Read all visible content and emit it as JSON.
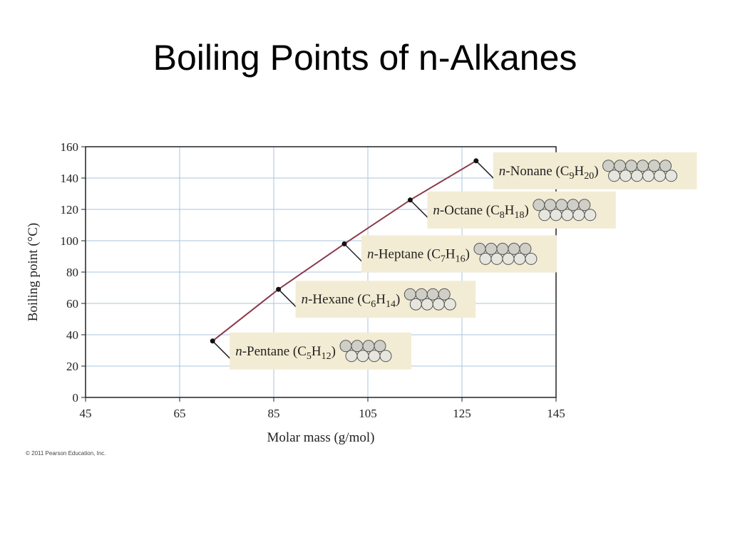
{
  "chart_data": {
    "type": "line",
    "title": "Boiling Points of n-Alkanes",
    "x_label": "Molar mass (g/mol)",
    "y_label": "Boiling point (°C)",
    "footnote": "© 2011 Pearson Education, Inc.",
    "x": [
      72,
      86,
      100,
      114,
      128
    ],
    "series": [
      {
        "name": "Boiling point",
        "color": "#8b3a4a",
        "values": [
          36,
          69,
          98,
          126,
          151
        ]
      }
    ],
    "point_labels": [
      "n-Pentane (C5H12)",
      "n-Hexane (C6H14)",
      "n-Heptane (C7H16)",
      "n-Octane (C8H18)",
      "n-Nonane (C9H20)"
    ],
    "xlim": [
      45,
      145
    ],
    "xticks": [
      45,
      65,
      85,
      105,
      125,
      145
    ],
    "ylim": [
      0,
      160
    ],
    "yticks": [
      0,
      20,
      40,
      60,
      80,
      100,
      120,
      140,
      160
    ],
    "grid": true
  }
}
